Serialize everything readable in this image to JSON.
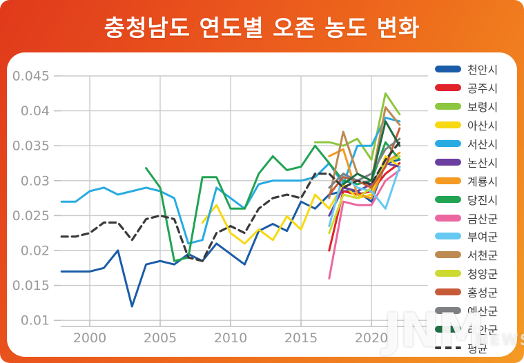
{
  "title": "충청남도 연도별 오존 농도 변화",
  "watermark": {
    "main": "JNM",
    "sub": "NEWS"
  },
  "colors": {
    "background_start": "#e0391b",
    "background_end": "#f49a24",
    "card": "#ffffff",
    "grid": "#cacaca",
    "axis": "#c0c0c0",
    "tick_label": "#9b9b9b",
    "legend_label": "#3e3e3e",
    "title_text": "#ffffff",
    "average_line": "#3a3a3a"
  },
  "chart_data": {
    "type": "line",
    "title": "충청남도 연도별 오존 농도 변화",
    "xlabel": "",
    "ylabel": "",
    "grid": true,
    "legend_position": "right",
    "xlim": [
      1998,
      2024
    ],
    "ylim": [
      0.01,
      0.045
    ],
    "x_tick_values": [
      2000,
      2005,
      2010,
      2015,
      2020
    ],
    "x_tick_labels": [
      "2000",
      "2005",
      "2010",
      "2015",
      "2020"
    ],
    "y_tick_values": [
      0.045,
      0.04,
      0.035,
      0.03,
      0.025,
      0.02,
      0.015,
      0.01
    ],
    "y_tick_labels": [
      "0.045",
      "0.04",
      "0.035",
      "0.03",
      "0.025",
      "0.02",
      "0.015",
      "0.01"
    ],
    "series": [
      {
        "name": "천안시",
        "color": "#1b5ca8",
        "dash": false,
        "x": [
          1998,
          1999,
          2000,
          2001,
          2002,
          2003,
          2004,
          2005,
          2006,
          2007,
          2008,
          2009,
          2010,
          2011,
          2012,
          2013,
          2014,
          2015,
          2016,
          2017,
          2018,
          2019,
          2020,
          2021,
          2022
        ],
        "y": [
          0.017,
          0.017,
          0.017,
          0.0175,
          0.02,
          0.012,
          0.018,
          0.0185,
          0.018,
          0.0195,
          0.0185,
          0.021,
          0.0195,
          0.018,
          0.0228,
          0.0238,
          0.0228,
          0.027,
          0.026,
          0.028,
          0.0285,
          0.0285,
          0.027,
          0.0325,
          0.033
        ]
      },
      {
        "name": "공주시",
        "color": "#e0222a",
        "dash": false,
        "x": [
          2017,
          2018,
          2019,
          2020,
          2021,
          2022
        ],
        "y": [
          0.02,
          0.0285,
          0.028,
          0.0285,
          0.031,
          0.0325
        ]
      },
      {
        "name": "보령시",
        "color": "#8dc63f",
        "dash": false,
        "x": [
          2016,
          2017,
          2018,
          2019,
          2020,
          2021,
          2022
        ],
        "y": [
          0.0355,
          0.0355,
          0.035,
          0.036,
          0.033,
          0.0425,
          0.0395
        ]
      },
      {
        "name": "아산시",
        "color": "#f7d911",
        "dash": false,
        "x": [
          2008,
          2009,
          2010,
          2011,
          2012,
          2013,
          2014,
          2015,
          2016,
          2017,
          2018,
          2019,
          2020,
          2021,
          2022
        ],
        "y": [
          0.024,
          0.0265,
          0.0225,
          0.021,
          0.023,
          0.0215,
          0.0249,
          0.023,
          0.028,
          0.026,
          0.0295,
          0.0275,
          0.028,
          0.0335,
          0.032
        ]
      },
      {
        "name": "서산시",
        "color": "#29abe2",
        "dash": false,
        "x": [
          1998,
          1999,
          2000,
          2001,
          2002,
          2003,
          2004,
          2005,
          2006,
          2007,
          2008,
          2009,
          2010,
          2011,
          2012,
          2013,
          2014,
          2015,
          2016,
          2017,
          2018,
          2019,
          2020,
          2021,
          2022
        ],
        "y": [
          0.027,
          0.027,
          0.0285,
          0.029,
          0.028,
          0.0285,
          0.029,
          0.0285,
          0.0275,
          0.021,
          0.0215,
          0.029,
          0.0275,
          0.026,
          0.0295,
          0.03,
          0.03,
          0.03,
          0.0305,
          0.0325,
          0.0295,
          0.035,
          0.035,
          0.039,
          0.0385
        ]
      },
      {
        "name": "논산시",
        "color": "#6b3fa0",
        "dash": false,
        "x": [
          2017,
          2018,
          2019,
          2020,
          2021,
          2022
        ],
        "y": [
          0.025,
          0.029,
          0.0285,
          0.0295,
          0.0325,
          0.032
        ]
      },
      {
        "name": "계룡시",
        "color": "#f49a23",
        "dash": false,
        "x": [
          2017,
          2018,
          2019,
          2020,
          2021,
          2022
        ],
        "y": [
          0.0335,
          0.0345,
          0.028,
          0.0275,
          0.0325,
          0.034
        ]
      },
      {
        "name": "당진시",
        "color": "#21a353",
        "dash": false,
        "x": [
          2004,
          2005,
          2006,
          2007,
          2008,
          2009,
          2010,
          2011,
          2012,
          2013,
          2014,
          2015,
          2016,
          2017,
          2018,
          2019,
          2020,
          2021,
          2022
        ],
        "y": [
          0.0318,
          0.029,
          0.0185,
          0.019,
          0.0305,
          0.0305,
          0.026,
          0.026,
          0.031,
          0.0335,
          0.0315,
          0.032,
          0.035,
          0.0325,
          0.03,
          0.0295,
          0.03,
          0.0355,
          0.033
        ]
      },
      {
        "name": "금산군",
        "color": "#ec679f",
        "dash": false,
        "x": [
          2017,
          2018,
          2019,
          2020,
          2021,
          2022
        ],
        "y": [
          0.016,
          0.027,
          0.0265,
          0.0265,
          0.03,
          0.0315
        ]
      },
      {
        "name": "부여군",
        "color": "#66c9f2",
        "dash": false,
        "x": [
          2017,
          2018,
          2019,
          2020,
          2021,
          2022
        ],
        "y": [
          0.0235,
          0.031,
          0.029,
          0.0285,
          0.026,
          0.032
        ]
      },
      {
        "name": "서천군",
        "color": "#bd8a52",
        "dash": false,
        "x": [
          2017,
          2018,
          2019,
          2020,
          2021,
          2022
        ],
        "y": [
          0.0275,
          0.037,
          0.031,
          0.03,
          0.0405,
          0.038
        ]
      },
      {
        "name": "청양군",
        "color": "#cdda31",
        "dash": false,
        "x": [
          2017,
          2018,
          2019,
          2020,
          2021,
          2022
        ],
        "y": [
          0.0225,
          0.028,
          0.0275,
          0.029,
          0.0325,
          0.0335
        ]
      },
      {
        "name": "홍성군",
        "color": "#c75b39",
        "dash": false,
        "x": [
          2017,
          2018,
          2019,
          2020,
          2021,
          2022
        ],
        "y": [
          0.028,
          0.0305,
          0.03,
          0.029,
          0.032,
          0.0375
        ]
      },
      {
        "name": "예산군",
        "color": "#7e8083",
        "dash": false,
        "x": [
          2017,
          2018,
          2019,
          2020,
          2021,
          2022
        ],
        "y": [
          0.029,
          0.031,
          0.03,
          0.031,
          0.0345,
          0.036
        ]
      },
      {
        "name": "태안군",
        "color": "#1f6e44",
        "dash": false,
        "x": [
          2018,
          2019,
          2020,
          2021,
          2022
        ],
        "y": [
          0.0295,
          0.031,
          0.03,
          0.0385,
          0.035
        ]
      },
      {
        "name": "평균",
        "color": "#3a3a3a",
        "dash": true,
        "x": [
          1998,
          1999,
          2000,
          2001,
          2002,
          2003,
          2004,
          2005,
          2006,
          2007,
          2008,
          2009,
          2010,
          2011,
          2012,
          2013,
          2014,
          2015,
          2016,
          2017,
          2018,
          2019,
          2020,
          2021,
          2022
        ],
        "y": [
          0.022,
          0.022,
          0.0225,
          0.024,
          0.024,
          0.0215,
          0.0245,
          0.025,
          0.0245,
          0.019,
          0.0185,
          0.0225,
          0.0235,
          0.0225,
          0.026,
          0.0275,
          0.028,
          0.0275,
          0.031,
          0.031,
          0.029,
          0.03,
          0.0295,
          0.033,
          0.0355
        ]
      }
    ]
  }
}
